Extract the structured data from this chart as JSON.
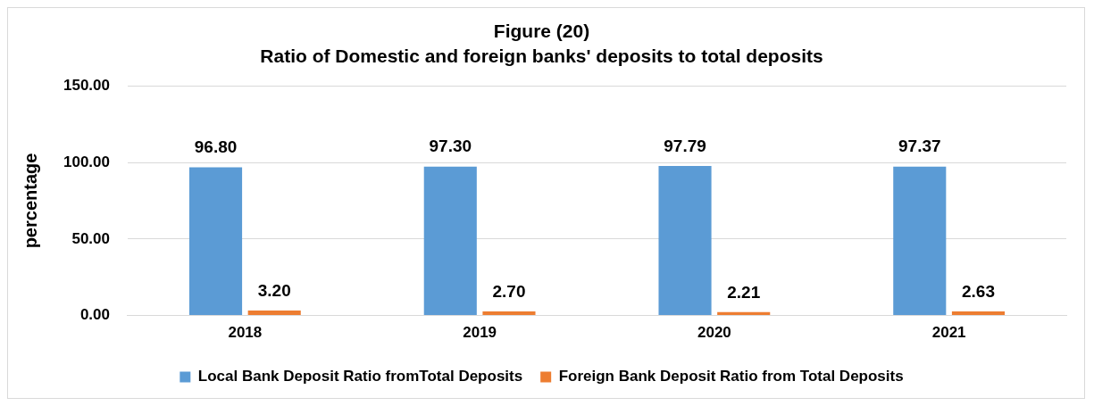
{
  "chart_data": {
    "type": "bar",
    "title": "Figure (20)",
    "subtitle": "Ratio of Domestic and foreign banks' deposits to total deposits",
    "ylabel": "percentage",
    "categories": [
      "2018",
      "2019",
      "2020",
      "2021"
    ],
    "series": [
      {
        "name": "Local Bank Deposit Ratio fromTotal Deposits",
        "color": "#5b9bd5",
        "values": [
          96.8,
          97.3,
          97.79,
          97.37
        ],
        "value_labels": [
          "96.80",
          "97.30",
          "97.79",
          "97.37"
        ]
      },
      {
        "name": "Foreign Bank Deposit Ratio from Total Deposits",
        "color": "#ed7d31",
        "values": [
          3.2,
          2.7,
          2.21,
          2.63
        ],
        "value_labels": [
          "3.20",
          "2.70",
          "2.21",
          "2.63"
        ]
      }
    ],
    "ylim": [
      0,
      150
    ],
    "yticks": [
      {
        "value": 0,
        "label": "0.00"
      },
      {
        "value": 50,
        "label": "50.00"
      },
      {
        "value": 100,
        "label": "100.00"
      },
      {
        "value": 150,
        "label": "150.00"
      }
    ],
    "grid": "y",
    "legend": "bottom"
  }
}
